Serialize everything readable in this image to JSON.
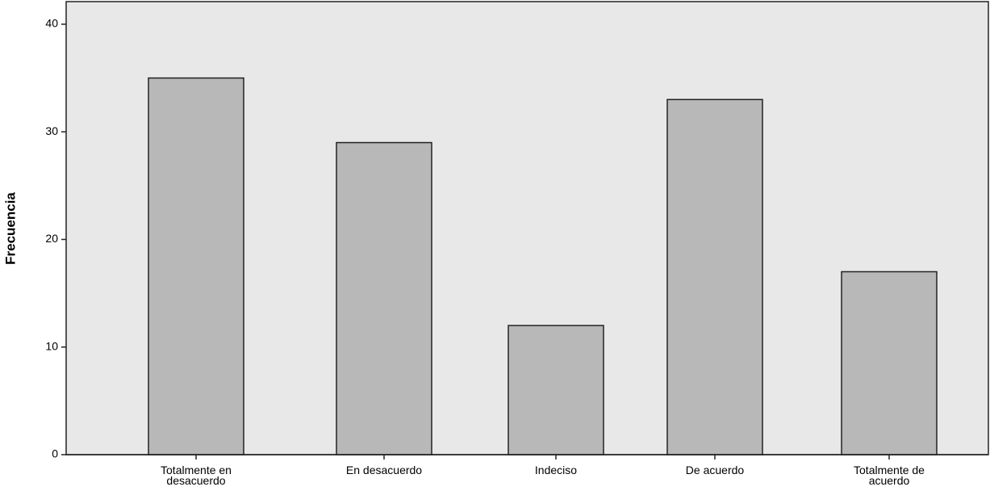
{
  "chart_data": {
    "type": "bar",
    "y_label": "Frecuencia",
    "categories": [
      "Totalmente en desacuerdo",
      "En desacuerdo",
      "Indeciso",
      "De acuerdo",
      "Totalmente de acuerdo"
    ],
    "values": [
      35,
      29,
      12,
      33,
      17
    ],
    "color": "#b8b8b8",
    "ylim": [
      0,
      42.1
    ],
    "yticks": [
      0,
      10,
      20,
      30,
      40
    ],
    "grid": false
  }
}
